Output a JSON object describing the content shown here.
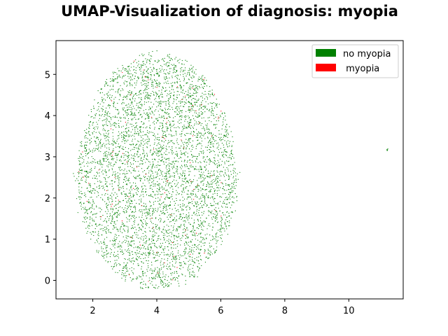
{
  "chart_data": {
    "type": "scatter",
    "title": "UMAP-Visualization of diagnosis: myopia",
    "xlabel": "",
    "ylabel": "",
    "xlim": [
      0.85,
      11.7
    ],
    "ylim": [
      -0.45,
      5.82
    ],
    "x_ticks": [
      2,
      4,
      6,
      8,
      10
    ],
    "y_ticks": [
      0,
      1,
      2,
      3,
      4,
      5
    ],
    "grid": false,
    "legend_position": "top-right",
    "series": [
      {
        "name": "no myopia",
        "color": "#008000",
        "cluster": {
          "center": [
            4.0,
            2.65
          ],
          "radius_x": 2.55,
          "radius_y": 2.85,
          "count": 5000
        },
        "points": [
          [
            11.2,
            3.18
          ],
          [
            11.21,
            3.16
          ],
          [
            11.19,
            3.17
          ],
          [
            11.2,
            3.15
          ],
          [
            11.22,
            3.19
          ]
        ]
      },
      {
        "name": " myopia",
        "color": "#ff0000",
        "cluster": {
          "center": [
            4.0,
            2.65
          ],
          "radius_x": 2.55,
          "radius_y": 2.85,
          "count": 90
        },
        "points": []
      }
    ]
  }
}
